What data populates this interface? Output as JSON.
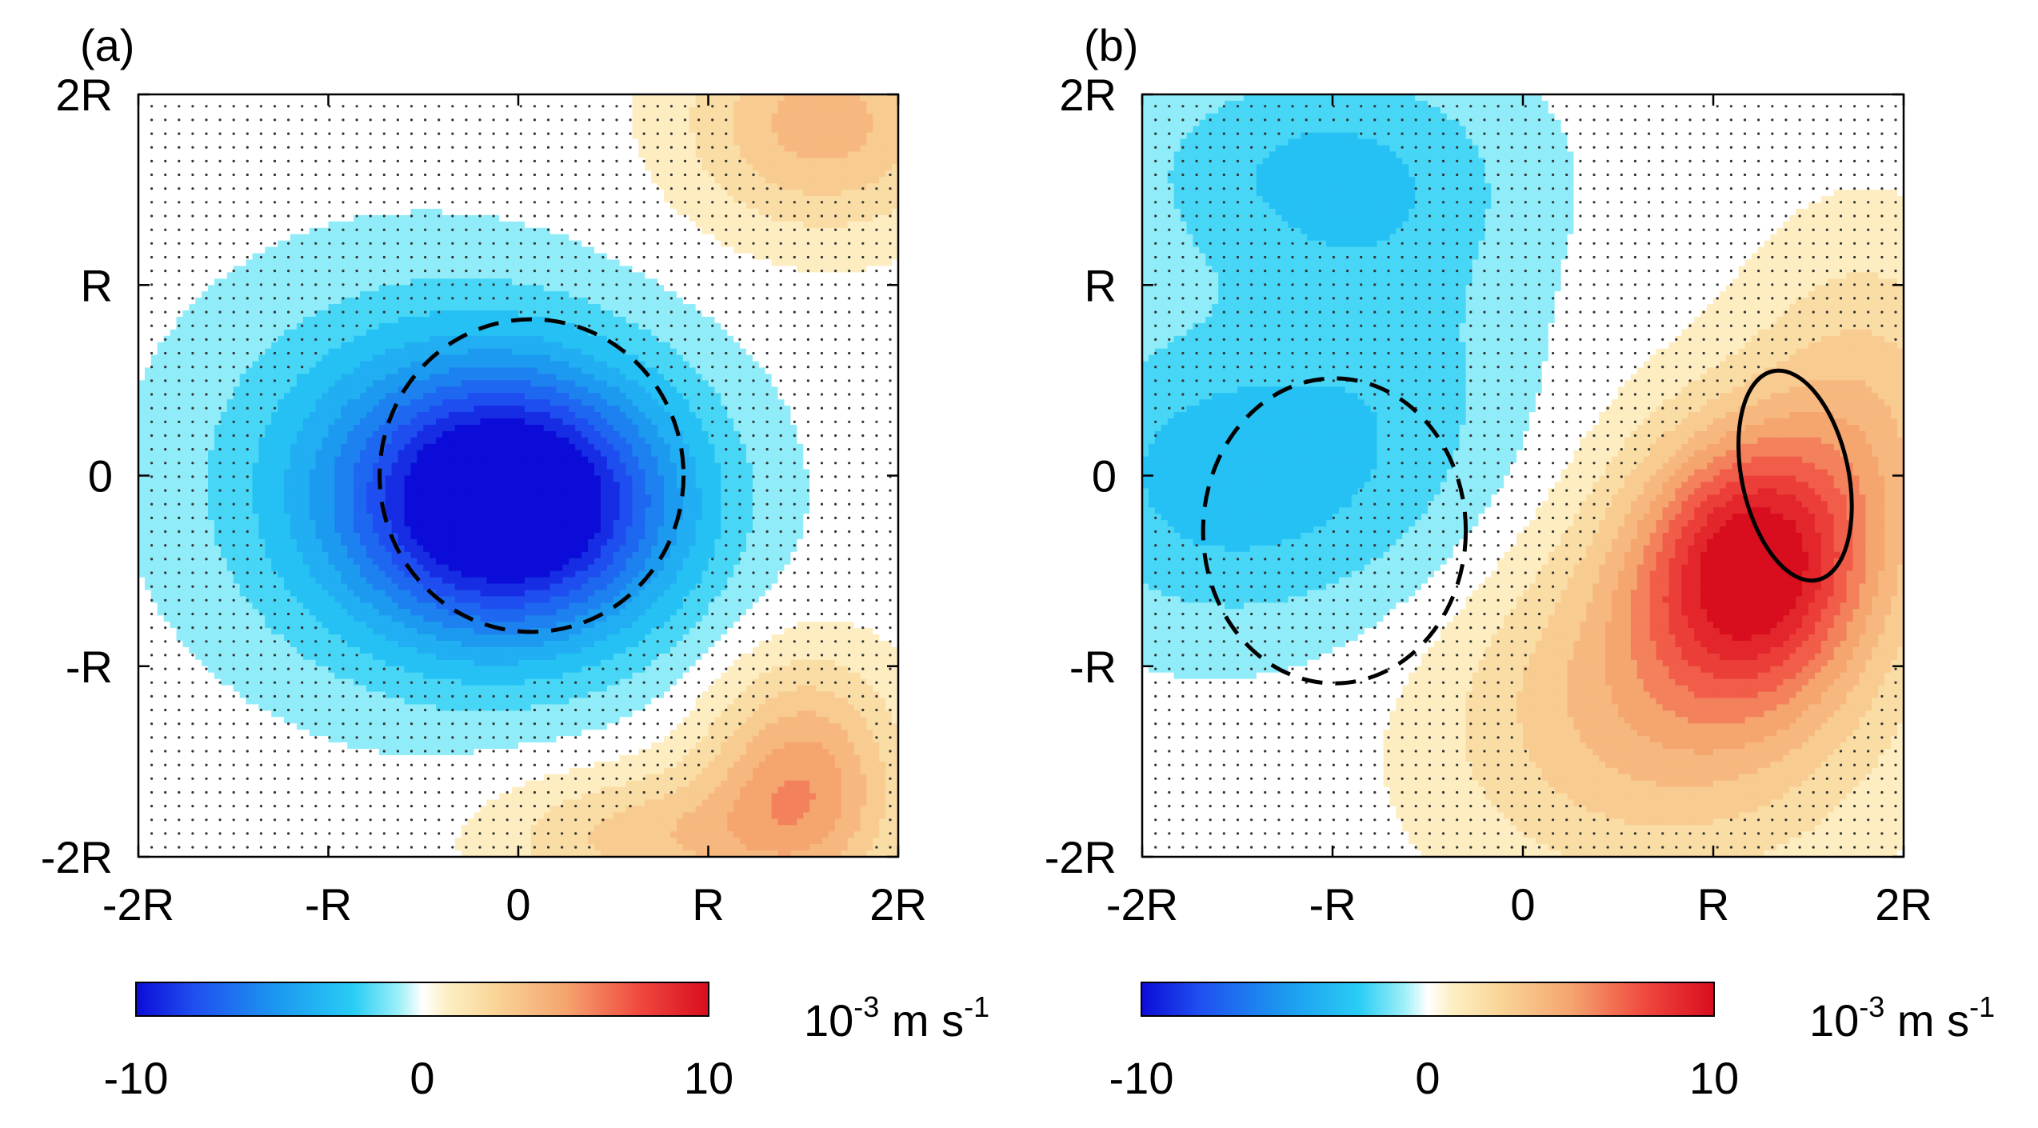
{
  "figure": {
    "units_label": {
      "base": "10",
      "exp": "-3",
      "mid": " m s",
      "exp2": "-1"
    }
  },
  "chart_data": [
    {
      "type": "heatmap",
      "panel_label": "(a)",
      "xlabel": "",
      "ylabel": "",
      "xlim": [
        -2,
        2
      ],
      "ylim": [
        -2,
        2
      ],
      "x_ticks": [
        -2,
        -1,
        0,
        1,
        2
      ],
      "x_tick_labels": [
        "-2R",
        "-R",
        "0",
        "R",
        "2R"
      ],
      "y_ticks": [
        2,
        1,
        0,
        -1,
        -2
      ],
      "y_tick_labels": [
        "2R",
        "R",
        "0",
        "-R",
        "-2R"
      ],
      "colorbar": {
        "min": -10,
        "max": 10,
        "ticks": [
          "-10",
          "0",
          "10"
        ],
        "label": "10-3 m s-1"
      },
      "field_sources": [
        {
          "x": 0.0,
          "y": -0.15,
          "sx": 0.85,
          "sy": 0.7,
          "amp": -11
        },
        {
          "x": -0.6,
          "y": 0.0,
          "sx": 1.1,
          "sy": 1.0,
          "amp": -3
        },
        {
          "x": 1.5,
          "y": -1.6,
          "sx": 0.5,
          "sy": 0.6,
          "amp": 5
        },
        {
          "x": 0.7,
          "y": -1.9,
          "sx": 0.8,
          "sy": 0.35,
          "amp": 3
        },
        {
          "x": 1.6,
          "y": 1.85,
          "sx": 0.7,
          "sy": 0.55,
          "amp": 4
        }
      ],
      "contours": [
        {
          "style": "dashed",
          "cx": 0.07,
          "cy": 0.0,
          "rx": 0.8,
          "ry": 0.82,
          "rotate_deg": 0
        }
      ],
      "stipple": {
        "spacing": 0.072,
        "threshold": 2.5
      }
    },
    {
      "type": "heatmap",
      "panel_label": "(b)",
      "xlabel": "",
      "ylabel": "",
      "xlim": [
        -2,
        2
      ],
      "ylim": [
        -2,
        2
      ],
      "x_ticks": [
        -2,
        -1,
        0,
        1,
        2
      ],
      "x_tick_labels": [
        "-2R",
        "-R",
        "0",
        "R",
        "2R"
      ],
      "y_ticks": [
        2,
        1,
        0,
        -1,
        -2
      ],
      "y_tick_labels": [
        "2R",
        "R",
        "0",
        "-R",
        "-2R"
      ],
      "colorbar": {
        "min": -10,
        "max": 10,
        "ticks": [
          "-10",
          "0",
          "10"
        ],
        "label": "10-3 m s-1"
      },
      "field_sources": [
        {
          "x": 1.2,
          "y": -0.45,
          "sx": 0.6,
          "sy": 0.7,
          "amp": 9
        },
        {
          "x": 0.7,
          "y": -1.2,
          "sx": 1.1,
          "sy": 0.9,
          "amp": 4
        },
        {
          "x": 1.8,
          "y": 0.3,
          "sx": 0.6,
          "sy": 0.9,
          "amp": 3
        },
        {
          "x": -1.6,
          "y": 0.0,
          "sx": 0.9,
          "sy": 0.8,
          "amp": -3
        },
        {
          "x": -1.1,
          "y": 1.6,
          "sx": 1.0,
          "sy": 0.6,
          "amp": -2.5
        },
        {
          "x": -0.6,
          "y": 0.4,
          "sx": 0.7,
          "sy": 1.2,
          "amp": -1.5
        }
      ],
      "contours": [
        {
          "style": "dashed",
          "cx": -0.99,
          "cy": -0.29,
          "rx": 0.69,
          "ry": 0.8,
          "rotate_deg": 0
        },
        {
          "style": "solid",
          "cx": 1.43,
          "cy": 0.0,
          "rx": 0.28,
          "ry": 0.56,
          "rotate_deg": -12
        }
      ],
      "stipple": {
        "spacing": 0.072,
        "threshold": 2.5
      }
    }
  ]
}
